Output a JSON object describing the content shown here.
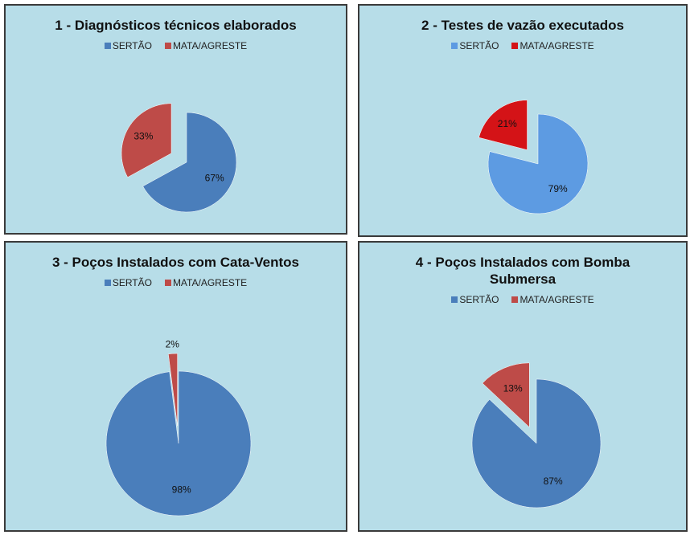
{
  "chart_data": [
    {
      "type": "pie",
      "title": "1 - Diagnósticos técnicos elaborados",
      "categories": [
        "SERTÃO",
        "MATA/AGRESTE"
      ],
      "values": [
        67,
        33
      ],
      "value_labels": [
        "67%",
        "33%"
      ],
      "colors": [
        "#4a7ebb",
        "#be4b48"
      ],
      "legend": "top"
    },
    {
      "type": "pie",
      "title": "2 - Testes de vazão executados",
      "categories": [
        "SERTÃO",
        "MATA/AGRESTE"
      ],
      "values": [
        79,
        21
      ],
      "value_labels": [
        "79%",
        "21%"
      ],
      "colors": [
        "#5d9be2",
        "#d41317"
      ],
      "legend": "top"
    },
    {
      "type": "pie",
      "title": "3 - Poços Instalados com Cata-Ventos",
      "categories": [
        "SERTÃO",
        "MATA/AGRESTE"
      ],
      "values": [
        98,
        2
      ],
      "value_labels": [
        "98%",
        "2%"
      ],
      "colors": [
        "#4a7ebb",
        "#be4b48"
      ],
      "legend": "top"
    },
    {
      "type": "pie",
      "title": "4 - Poços Instalados com Bomba Submersa",
      "categories": [
        "SERTÃO",
        "MATA/AGRESTE"
      ],
      "values": [
        87,
        13
      ],
      "value_labels": [
        "87%",
        "13%"
      ],
      "colors": [
        "#4a7ebb",
        "#be4b48"
      ],
      "legend": "top"
    }
  ]
}
